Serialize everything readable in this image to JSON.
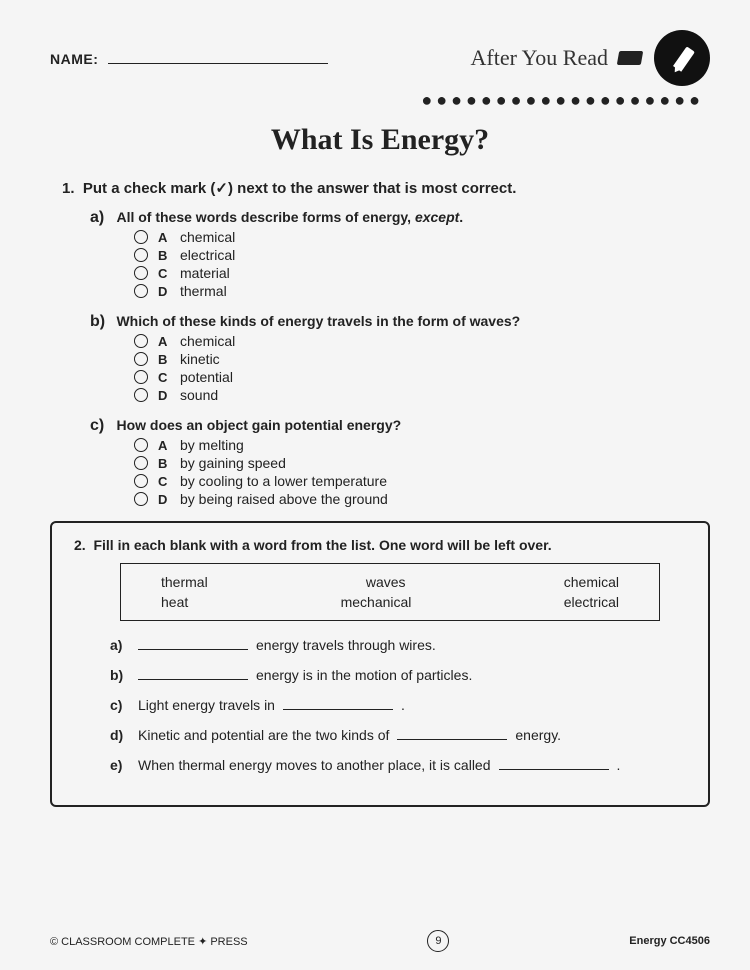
{
  "header": {
    "name_label": "NAME:",
    "section": "After You Read"
  },
  "title": "What Is Energy?",
  "q1": {
    "number": "1.",
    "instruction": "Put a check mark (✓) next to the answer that is most correct.",
    "parts": [
      {
        "label": "a)",
        "prompt_prefix": "All of these words describe forms of energy, ",
        "prompt_em": "except",
        "prompt_suffix": ".",
        "options": [
          {
            "letter": "A",
            "text": "chemical"
          },
          {
            "letter": "B",
            "text": "electrical"
          },
          {
            "letter": "C",
            "text": "material"
          },
          {
            "letter": "D",
            "text": "thermal"
          }
        ]
      },
      {
        "label": "b)",
        "prompt": "Which of these kinds of energy travels in the form of waves?",
        "options": [
          {
            "letter": "A",
            "text": "chemical"
          },
          {
            "letter": "B",
            "text": "kinetic"
          },
          {
            "letter": "C",
            "text": "potential"
          },
          {
            "letter": "D",
            "text": "sound"
          }
        ]
      },
      {
        "label": "c)",
        "prompt": "How does an object gain potential energy?",
        "options": [
          {
            "letter": "A",
            "text": "by melting"
          },
          {
            "letter": "B",
            "text": "by gaining speed"
          },
          {
            "letter": "C",
            "text": "by cooling to a lower temperature"
          },
          {
            "letter": "D",
            "text": "by being raised above the ground"
          }
        ]
      }
    ]
  },
  "q2": {
    "number": "2.",
    "instruction": "Fill in each blank with a word from the list. One word will be left over.",
    "word_bank": [
      [
        "thermal",
        "waves",
        "chemical"
      ],
      [
        "heat",
        "mechanical",
        "electrical"
      ]
    ],
    "items": [
      {
        "label": "a)",
        "before": "",
        "after": " energy travels through wires."
      },
      {
        "label": "b)",
        "before": "",
        "after": " energy is in the motion of particles."
      },
      {
        "label": "c)",
        "before": "Light energy travels in ",
        "after": "."
      },
      {
        "label": "d)",
        "before": "Kinetic and potential are the two kinds of ",
        "after": " energy."
      },
      {
        "label": "e)",
        "before": "When thermal energy moves to another place, it is called ",
        "after": "."
      }
    ]
  },
  "footer": {
    "copyright": "© CLASSROOM COMPLETE ✦ PRESS",
    "page": "9",
    "code": "Energy  CC4506"
  },
  "dots": "●●●●●●●●●●●●●●●●●●●"
}
